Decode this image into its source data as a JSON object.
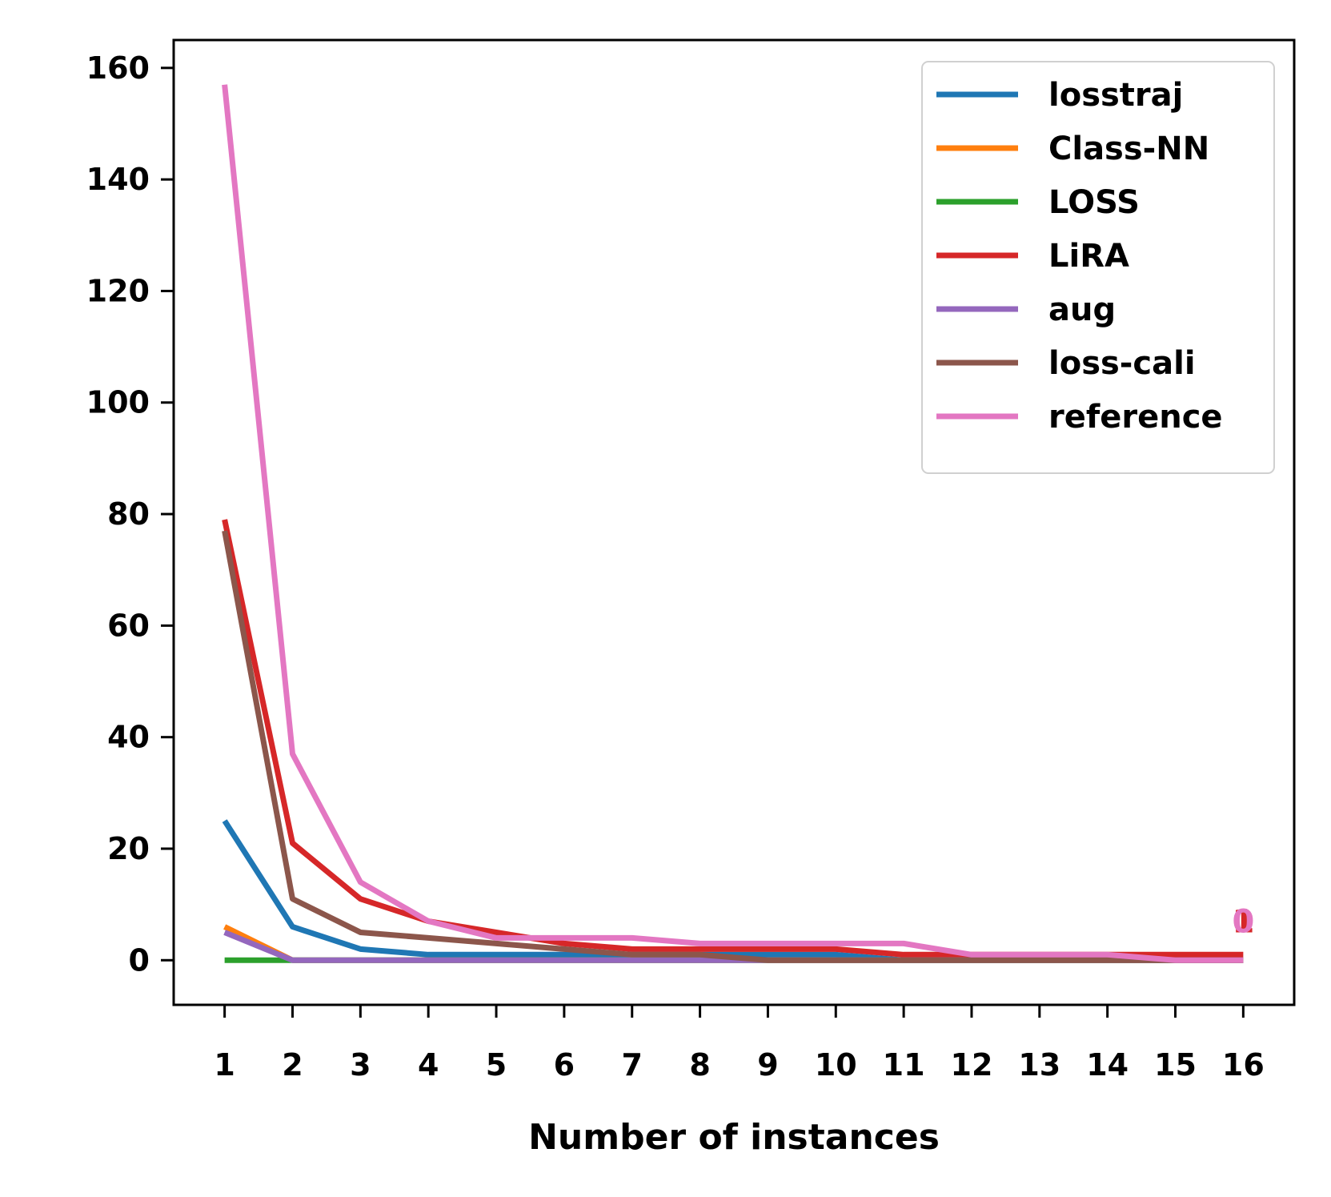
{
  "chart_data": {
    "type": "line",
    "title": "",
    "xlabel": "Number of instances",
    "ylabel": "",
    "x": [
      1,
      2,
      3,
      4,
      5,
      6,
      7,
      8,
      9,
      10,
      11,
      12,
      13,
      14,
      15,
      16
    ],
    "xticks": [
      "1",
      "2",
      "3",
      "4",
      "5",
      "6",
      "7",
      "8",
      "9",
      "10",
      "11",
      "12",
      "13",
      "14",
      "15",
      "16"
    ],
    "yticks": [
      "0",
      "20",
      "40",
      "60",
      "80",
      "100",
      "120",
      "140",
      "160"
    ],
    "ytick_values": [
      0,
      20,
      40,
      60,
      80,
      100,
      120,
      140,
      160
    ],
    "ylim": [
      -8,
      165
    ],
    "xlim": [
      0.25,
      16.75
    ],
    "grid": false,
    "legend_position": "top-right",
    "series": [
      {
        "name": "losstraj",
        "color": "#1f77b4",
        "values": [
          25,
          6,
          2,
          1,
          1,
          1,
          1,
          1,
          1,
          1,
          0,
          0,
          0,
          0,
          0,
          0
        ]
      },
      {
        "name": "Class-NN",
        "color": "#ff7f0e",
        "values": [
          6,
          0,
          0,
          0,
          0,
          0,
          0,
          0,
          0,
          0,
          0,
          0,
          0,
          0,
          0,
          0
        ]
      },
      {
        "name": "LOSS",
        "color": "#2ca02c",
        "values": [
          0,
          0,
          0,
          0,
          0,
          0,
          0,
          0,
          0,
          0,
          0,
          0,
          0,
          0,
          0,
          0
        ]
      },
      {
        "name": "LiRA",
        "color": "#d62728",
        "values": [
          79,
          21,
          11,
          7,
          5,
          3,
          2,
          2,
          2,
          2,
          1,
          1,
          1,
          1,
          1,
          1
        ]
      },
      {
        "name": "aug",
        "color": "#9467bd",
        "values": [
          5,
          0,
          0,
          0,
          0,
          0,
          0,
          0,
          0,
          0,
          0,
          0,
          0,
          0,
          0,
          0
        ]
      },
      {
        "name": "loss-cali",
        "color": "#8c564b",
        "values": [
          77,
          11,
          5,
          4,
          3,
          2,
          1,
          1,
          0,
          0,
          0,
          0,
          0,
          0,
          0,
          0
        ]
      },
      {
        "name": "reference",
        "color": "#e377c2",
        "values": [
          157,
          37,
          14,
          7,
          4,
          4,
          4,
          3,
          3,
          3,
          3,
          1,
          1,
          1,
          0,
          0
        ]
      }
    ],
    "annotations": [
      {
        "text": "1",
        "x": 16,
        "y": 7,
        "color": "#d62728"
      },
      {
        "text": "0",
        "x": 16,
        "y": 7,
        "color": "#e377c2"
      }
    ]
  }
}
